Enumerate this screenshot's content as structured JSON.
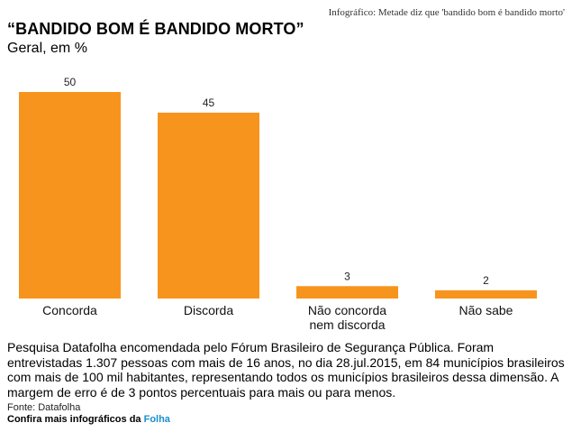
{
  "header": {
    "caption": "Infográfico: Metade diz que 'bandido bom é bandido morto'"
  },
  "chart_data": {
    "type": "bar",
    "title": "“BANDIDO BOM É BANDIDO MORTO”",
    "subtitle": "Geral, em %",
    "categories": [
      "Concorda",
      "Discorda",
      "Não concorda nem discorda",
      "Não sabe"
    ],
    "category_lines": [
      [
        "Concorda"
      ],
      [
        "Discorda"
      ],
      [
        "Não concorda",
        "nem discorda"
      ],
      [
        "Não sabe"
      ]
    ],
    "values": [
      50,
      45,
      3,
      2
    ],
    "value_labels": [
      "50",
      "45",
      "3",
      "2"
    ],
    "ylim": [
      0,
      50
    ],
    "grid": false,
    "bar_color": "#f7941d"
  },
  "footer": {
    "note": "Pesquisa Datafolha encomendada pelo Fórum Brasileiro de Segurança Pública. Foram entrevistadas 1.307 pessoas com mais de 16 anos, no dia 28.jul.2015, em 84 municípios brasileiros com mais de 100 mil habitantes, representando todos os municípios brasileiros dessa dimensão. A margem de erro é de 3 pontos percentuais para mais ou para menos.",
    "source": "Fonte: Datafolha",
    "more_prefix": "Confira mais infográficos da ",
    "more_brand": "Folha"
  }
}
